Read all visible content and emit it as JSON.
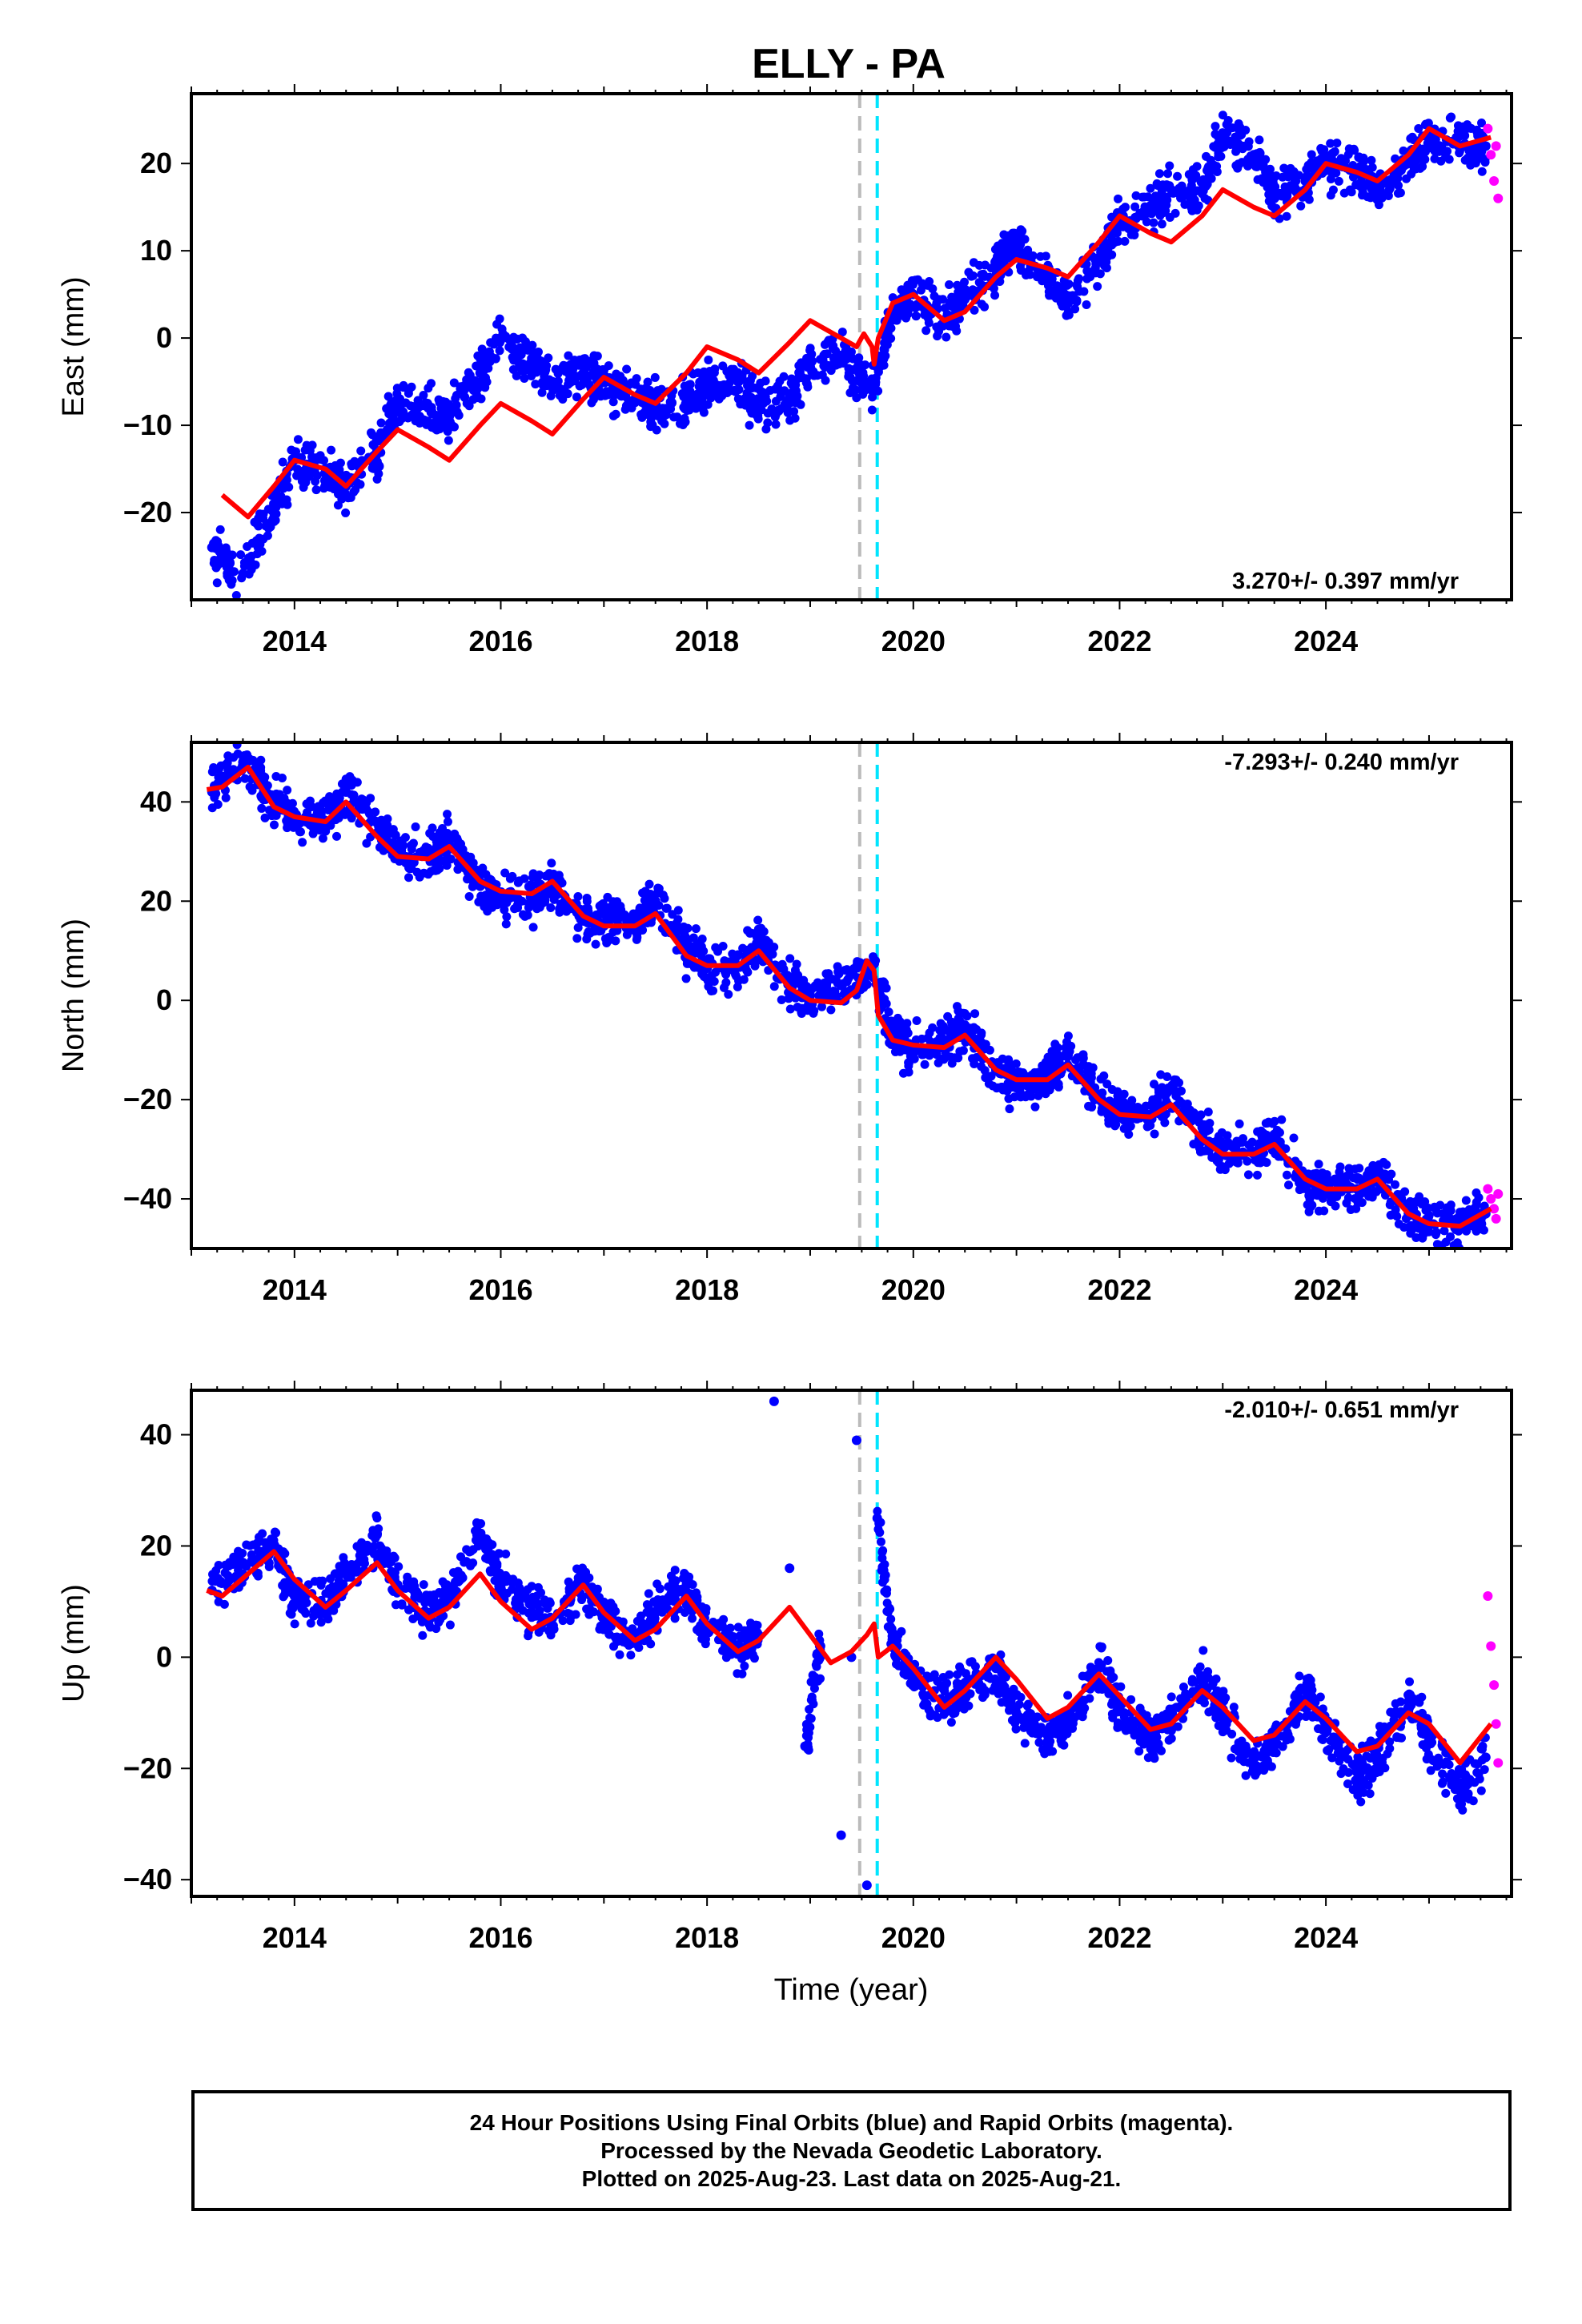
{
  "title": "ELLY - PA",
  "xlabel": "Time (year)",
  "caption": [
    "24 Hour Positions Using Final Orbits (blue) and Rapid Orbits (magenta).",
    "Processed by the Nevada Geodetic Laboratory.",
    "Plotted on 2025-Aug-23. Last data on 2025-Aug-21."
  ],
  "colors": {
    "final_orbits": "#0000ff",
    "rapid_orbits": "#ff00ff",
    "model_fit": "#ff0000",
    "line_gray": "#bbbbbb",
    "line_cyan": "#00e5ff"
  },
  "chart_data": [
    {
      "type": "scatter",
      "ylabel": "East (mm)",
      "rate_label": "3.270+/- 0.397 mm/yr",
      "rate_position": "bottom-right",
      "xlim": [
        2013.0,
        2025.8
      ],
      "ylim": [
        -30,
        28
      ],
      "xticks": [
        2014,
        2016,
        2018,
        2020,
        2022,
        2024
      ],
      "yticks": [
        -20,
        -10,
        0,
        10,
        20
      ],
      "vlines": [
        {
          "x": 2019.48,
          "color": "gray"
        },
        {
          "x": 2019.65,
          "color": "cyan"
        }
      ],
      "final_orbit_points": {
        "x": [
          2013.2,
          2013.5,
          2013.8,
          2014.0,
          2014.3,
          2014.5,
          2014.8,
          2015.0,
          2015.3,
          2015.5,
          2015.8,
          2016.0,
          2016.3,
          2016.5,
          2016.8,
          2017.0,
          2017.3,
          2017.5,
          2017.8,
          2018.0,
          2018.3,
          2018.5,
          2018.8,
          2019.0,
          2019.3,
          2019.6,
          2019.8,
          2020.0,
          2020.3,
          2020.5,
          2020.8,
          2021.0,
          2021.3,
          2021.5,
          2021.8,
          2022.0,
          2022.3,
          2022.5,
          2022.8,
          2023.0,
          2023.3,
          2023.5,
          2023.8,
          2024.0,
          2024.3,
          2024.5,
          2024.8,
          2025.0,
          2025.3,
          2025.55
        ],
        "y": [
          -24,
          -27,
          -19,
          -14,
          -15,
          -17,
          -13,
          -7,
          -8,
          -9,
          -4,
          0,
          -3,
          -5,
          -4,
          -5,
          -7,
          -8,
          -7,
          -6,
          -5,
          -8,
          -7,
          -3,
          -2,
          -6,
          3,
          5,
          2,
          5,
          8,
          11,
          7,
          4,
          9,
          13,
          15,
          17,
          17,
          23,
          21,
          16,
          18,
          20,
          19,
          17,
          20,
          23,
          22,
          22
        ]
      },
      "rapid_orbit_points": {
        "x": [
          2025.57,
          2025.6,
          2025.63,
          2025.65,
          2025.67
        ],
        "y": [
          24,
          21,
          18,
          22,
          16
        ]
      },
      "model": {
        "x": [
          2013.3,
          2013.55,
          2013.8,
          2014.0,
          2014.3,
          2014.5,
          2014.8,
          2015.0,
          2015.3,
          2015.5,
          2015.8,
          2016.0,
          2016.3,
          2016.5,
          2016.8,
          2017.0,
          2017.3,
          2017.5,
          2017.8,
          2018.0,
          2018.3,
          2018.5,
          2018.8,
          2019.0,
          2019.3,
          2019.45,
          2019.52,
          2019.6,
          2019.62,
          2019.66,
          2019.8,
          2020.0,
          2020.3,
          2020.5,
          2020.8,
          2021.0,
          2021.3,
          2021.5,
          2021.8,
          2022.0,
          2022.3,
          2022.5,
          2022.8,
          2023.0,
          2023.3,
          2023.5,
          2023.8,
          2024.0,
          2024.3,
          2024.5,
          2024.8,
          2025.0,
          2025.3,
          2025.6
        ],
        "y": [
          -18,
          -20.5,
          -17,
          -14,
          -15,
          -17,
          -13,
          -10.5,
          -12.5,
          -14,
          -10,
          -7.5,
          -9.5,
          -11,
          -7,
          -4.5,
          -6.5,
          -7.5,
          -4,
          -1,
          -2.5,
          -4,
          -0.5,
          2,
          0,
          -1,
          0.5,
          -1,
          -3,
          0,
          4,
          5,
          2,
          3,
          7,
          9,
          8,
          7,
          11,
          14,
          12,
          11,
          14,
          17,
          15,
          14,
          17,
          20,
          19,
          18,
          21,
          24,
          22,
          23
        ]
      }
    },
    {
      "type": "scatter",
      "ylabel": "North (mm)",
      "rate_label": "-7.293+/- 0.240 mm/yr",
      "rate_position": "top-right",
      "xlim": [
        2013.0,
        2025.8
      ],
      "ylim": [
        -50,
        52
      ],
      "xticks": [
        2014,
        2016,
        2018,
        2020,
        2022,
        2024
      ],
      "yticks": [
        -40,
        -20,
        0,
        20,
        40
      ],
      "vlines": [
        {
          "x": 2019.48,
          "color": "gray"
        },
        {
          "x": 2019.65,
          "color": "cyan"
        }
      ],
      "final_orbit_points": {
        "x": [
          2013.2,
          2013.5,
          2013.8,
          2014.0,
          2014.3,
          2014.5,
          2014.8,
          2015.0,
          2015.3,
          2015.5,
          2015.8,
          2016.0,
          2016.3,
          2016.5,
          2016.8,
          2017.0,
          2017.3,
          2017.5,
          2017.8,
          2018.0,
          2018.3,
          2018.5,
          2018.8,
          2019.0,
          2019.3,
          2019.6,
          2019.8,
          2020.0,
          2020.3,
          2020.5,
          2020.8,
          2021.0,
          2021.3,
          2021.5,
          2021.8,
          2022.0,
          2022.3,
          2022.5,
          2022.8,
          2023.0,
          2023.3,
          2023.5,
          2023.8,
          2024.0,
          2024.3,
          2024.5,
          2024.8,
          2025.0,
          2025.3,
          2025.55
        ],
        "y": [
          42,
          48,
          40,
          37,
          36,
          42,
          36,
          30,
          29,
          32,
          23,
          21,
          21,
          24,
          16,
          15,
          16,
          20,
          10,
          7,
          7,
          13,
          3,
          1,
          3,
          7,
          -7,
          -10,
          -9,
          -5,
          -14,
          -17,
          -15,
          -11,
          -20,
          -23,
          -23,
          -18,
          -27,
          -31,
          -31,
          -27,
          -37,
          -38,
          -38,
          -35,
          -43,
          -45,
          -45,
          -43
        ]
      },
      "rapid_orbit_points": {
        "x": [
          2025.57,
          2025.6,
          2025.63,
          2025.65,
          2025.67
        ],
        "y": [
          -38,
          -40,
          -42,
          -44,
          -39
        ]
      },
      "model": {
        "x": [
          2013.15,
          2013.3,
          2013.55,
          2013.8,
          2014.0,
          2014.3,
          2014.5,
          2014.8,
          2015.0,
          2015.3,
          2015.5,
          2015.8,
          2016.0,
          2016.3,
          2016.5,
          2016.8,
          2017.0,
          2017.3,
          2017.5,
          2017.8,
          2018.0,
          2018.3,
          2018.5,
          2018.8,
          2019.0,
          2019.3,
          2019.45,
          2019.55,
          2019.62,
          2019.66,
          2019.8,
          2020.0,
          2020.3,
          2020.5,
          2020.8,
          2021.0,
          2021.3,
          2021.5,
          2021.8,
          2022.0,
          2022.3,
          2022.5,
          2022.8,
          2023.0,
          2023.3,
          2023.5,
          2023.8,
          2024.0,
          2024.3,
          2024.5,
          2024.8,
          2025.0,
          2025.3,
          2025.6
        ],
        "y": [
          42.5,
          43,
          47,
          39,
          37,
          36,
          40,
          33,
          29,
          28.5,
          31,
          24,
          22,
          21.5,
          24,
          17,
          15,
          15,
          17.5,
          9,
          7,
          7,
          10,
          2.5,
          0,
          -0.5,
          2,
          8,
          6,
          -3,
          -8,
          -9,
          -9.5,
          -7,
          -14,
          -16,
          -16,
          -13,
          -20,
          -23,
          -23.5,
          -21,
          -28,
          -31,
          -31,
          -29,
          -36,
          -38,
          -38,
          -36,
          -43,
          -45,
          -45.5,
          -42
        ]
      }
    },
    {
      "type": "scatter",
      "ylabel": "Up (mm)",
      "rate_label": "-2.010+/- 0.651 mm/yr",
      "rate_position": "top-right",
      "xlim": [
        2013.0,
        2025.8
      ],
      "ylim": [
        -43,
        48
      ],
      "xticks": [
        2014,
        2016,
        2018,
        2020,
        2022,
        2024
      ],
      "yticks": [
        -40,
        -20,
        0,
        20,
        40
      ],
      "vlines": [
        {
          "x": 2019.48,
          "color": "gray"
        },
        {
          "x": 2019.65,
          "color": "cyan"
        }
      ],
      "final_orbit_points": {
        "x": [
          2013.2,
          2013.5,
          2013.8,
          2014.0,
          2014.3,
          2014.5,
          2014.8,
          2015.0,
          2015.3,
          2015.5,
          2015.8,
          2016.0,
          2016.3,
          2016.5,
          2016.8,
          2017.0,
          2017.3,
          2017.5,
          2017.8,
          2018.0,
          2018.3,
          2018.5,
          2018.65,
          2018.8,
          2018.95,
          2019.1,
          2019.3,
          2019.4,
          2019.45,
          2019.55,
          2019.65,
          2019.8,
          2020.0,
          2020.3,
          2020.5,
          2020.8,
          2021.0,
          2021.3,
          2021.5,
          2021.8,
          2022.0,
          2022.3,
          2022.5,
          2022.8,
          2023.0,
          2023.3,
          2023.5,
          2023.8,
          2024.0,
          2024.3,
          2024.5,
          2024.8,
          2025.0,
          2025.3,
          2025.55
        ],
        "y": [
          12,
          17,
          20,
          11,
          9,
          15,
          22,
          13,
          8,
          10,
          22,
          14,
          8,
          7,
          14,
          7,
          3,
          8,
          13,
          5,
          1,
          4,
          46,
          16,
          -16,
          2,
          -32,
          0,
          39,
          -41,
          25,
          2,
          -4,
          -8,
          -6,
          -2,
          -10,
          -14,
          -12,
          -2,
          -9,
          -15,
          -12,
          -4,
          -10,
          -20,
          -16,
          -6,
          -12,
          -22,
          -18,
          -8,
          -15,
          -24,
          -18
        ]
      },
      "rapid_orbit_points": {
        "x": [
          2025.57,
          2025.6,
          2025.63,
          2025.65,
          2025.67
        ],
        "y": [
          11,
          2,
          -5,
          -12,
          -19
        ]
      },
      "model": {
        "x": [
          2013.15,
          2013.3,
          2013.55,
          2013.8,
          2014.0,
          2014.3,
          2014.5,
          2014.8,
          2015.0,
          2015.3,
          2015.5,
          2015.8,
          2016.0,
          2016.3,
          2016.5,
          2016.8,
          2017.0,
          2017.3,
          2017.5,
          2017.8,
          2018.0,
          2018.3,
          2018.5,
          2018.8,
          2019.0,
          2019.2,
          2019.4,
          2019.55,
          2019.62,
          2019.66,
          2019.8,
          2020.0,
          2020.3,
          2020.5,
          2020.8,
          2021.0,
          2021.3,
          2021.5,
          2021.8,
          2022.0,
          2022.3,
          2022.5,
          2022.8,
          2023.0,
          2023.3,
          2023.5,
          2023.8,
          2024.0,
          2024.3,
          2024.5,
          2024.8,
          2025.0,
          2025.3,
          2025.6
        ],
        "y": [
          12,
          11,
          15,
          19,
          14,
          9,
          12,
          17,
          12,
          7,
          9,
          15,
          10,
          5,
          7,
          13,
          8,
          3,
          5,
          11,
          6,
          1,
          3,
          9,
          4,
          -1,
          1,
          4,
          6,
          0,
          2,
          -2,
          -9,
          -6,
          0,
          -4,
          -11,
          -9,
          -3,
          -7,
          -13,
          -12,
          -6,
          -9,
          -15,
          -14,
          -8,
          -11,
          -17,
          -16,
          -10,
          -12,
          -19,
          -12
        ]
      }
    }
  ]
}
